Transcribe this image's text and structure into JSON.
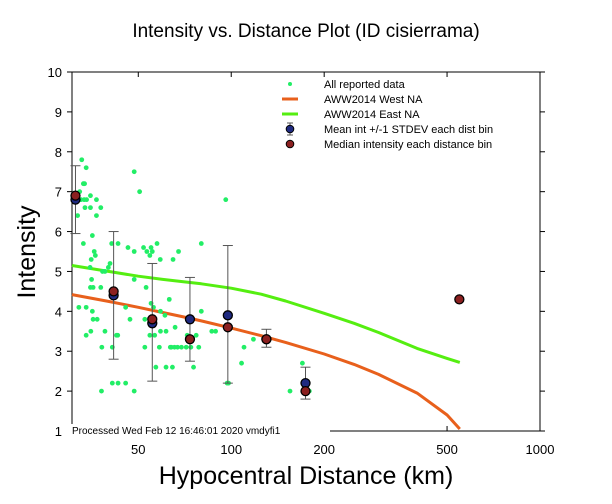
{
  "chart_data": {
    "type": "scatter",
    "title": "Intensity vs. Distance Plot (ID cisierrama)",
    "xlabel": "Hypocentral Distance (km)",
    "ylabel": "Intensity",
    "xscale": "log",
    "xlim": [
      30.5,
      1000
    ],
    "ylim": [
      1,
      10
    ],
    "xticks": [
      50,
      100,
      200,
      500,
      1000
    ],
    "xtick_labels": [
      "50",
      "100",
      "200",
      "500",
      "1000"
    ],
    "yticks": [
      1,
      2,
      3,
      4,
      5,
      6,
      7,
      8,
      9,
      10
    ],
    "ytick_labels": [
      "1",
      "2",
      "3",
      "4",
      "5",
      "6",
      "7",
      "8",
      "9",
      "10"
    ],
    "grid": false,
    "legend_position": "top-right",
    "footer": "Processed Wed Feb 12 16:46:01 2020 vmdyfi1",
    "colors": {
      "all_data": "#22ee66",
      "west": "#e8601c",
      "east": "#55ee11",
      "mean": "#1f2a80",
      "median": "#8b2020",
      "errorbar": "#555555"
    },
    "series": [
      {
        "name": "All reported data",
        "kind": "points",
        "points": [
          [
            32.8,
            7.8
          ],
          [
            33.9,
            7.6
          ],
          [
            33.2,
            7.2
          ],
          [
            33.5,
            7.2
          ],
          [
            32.3,
            7.0
          ],
          [
            32.6,
            6.8
          ],
          [
            33.4,
            6.8
          ],
          [
            34.0,
            6.8
          ],
          [
            35.0,
            6.9
          ],
          [
            36.6,
            6.8
          ],
          [
            33.6,
            6.6
          ],
          [
            35.0,
            6.6
          ],
          [
            37.8,
            6.6
          ],
          [
            31.8,
            6.4
          ],
          [
            36.6,
            6.4
          ],
          [
            33.2,
            5.7
          ],
          [
            35.5,
            5.9
          ],
          [
            36.0,
            5.5
          ],
          [
            36.3,
            5.4
          ],
          [
            35.2,
            5.3
          ],
          [
            34.9,
            5.1
          ],
          [
            41.0,
            5.7
          ],
          [
            43.0,
            5.7
          ],
          [
            40.5,
            5.2
          ],
          [
            40.0,
            5.1
          ],
          [
            35.3,
            4.8
          ],
          [
            38.3,
            5.0
          ],
          [
            39.0,
            5.0
          ],
          [
            35.0,
            4.6
          ],
          [
            35.7,
            4.6
          ],
          [
            37.8,
            4.6
          ],
          [
            32.1,
            4.1
          ],
          [
            33.9,
            4.1
          ],
          [
            35.5,
            4.0
          ],
          [
            35.7,
            3.8
          ],
          [
            33.9,
            3.4
          ],
          [
            35.1,
            3.5
          ],
          [
            36.8,
            3.8
          ],
          [
            38.1,
            3.1
          ],
          [
            41.2,
            3.1
          ],
          [
            42.9,
            3.4
          ],
          [
            39.0,
            3.5
          ],
          [
            42.5,
            3.4
          ],
          [
            46.3,
            5.6
          ],
          [
            48.5,
            5.5
          ],
          [
            52.0,
            5.6
          ],
          [
            53.3,
            5.5
          ],
          [
            55.5,
            5.5
          ],
          [
            55.0,
            5.6
          ],
          [
            57.5,
            5.7
          ],
          [
            48.5,
            7.5
          ],
          [
            50.5,
            7.0
          ],
          [
            54.5,
            5.4
          ],
          [
            58.9,
            5.3
          ],
          [
            64.8,
            5.3
          ],
          [
            67.5,
            5.5
          ],
          [
            48.5,
            4.8
          ],
          [
            53.0,
            4.6
          ],
          [
            55.0,
            4.2
          ],
          [
            56.0,
            4.1
          ],
          [
            59.0,
            4.0
          ],
          [
            61.0,
            3.9
          ],
          [
            63.0,
            4.3
          ],
          [
            65.8,
            3.6
          ],
          [
            45.5,
            4.1
          ],
          [
            47.0,
            3.8
          ],
          [
            52.5,
            3.8
          ],
          [
            54.5,
            3.4
          ],
          [
            56.5,
            3.4
          ],
          [
            59.0,
            3.5
          ],
          [
            61.5,
            3.5
          ],
          [
            64.0,
            3.1
          ],
          [
            52.5,
            3.1
          ],
          [
            58.5,
            3.1
          ],
          [
            63.5,
            3.1
          ],
          [
            65.5,
            3.1
          ],
          [
            67.0,
            3.1
          ],
          [
            69.0,
            3.1
          ],
          [
            71.5,
            3.1
          ],
          [
            74.0,
            3.1
          ],
          [
            78.5,
            3.1
          ],
          [
            57.0,
            2.6
          ],
          [
            61.5,
            2.6
          ],
          [
            64.5,
            2.6
          ],
          [
            72.0,
            3.4
          ],
          [
            75.5,
            2.6
          ],
          [
            80.0,
            4.0
          ],
          [
            86.5,
            3.5
          ],
          [
            96.0,
            6.8
          ],
          [
            98.0,
            2.2
          ],
          [
            80.0,
            5.7
          ],
          [
            77.0,
            3.4
          ],
          [
            89.0,
            3.5
          ],
          [
            118.0,
            3.3
          ],
          [
            110.0,
            3.1
          ],
          [
            108.0,
            2.7
          ],
          [
            38.0,
            2.0
          ],
          [
            41.2,
            2.2
          ],
          [
            43.0,
            2.2
          ],
          [
            45.5,
            2.2
          ],
          [
            48.5,
            2.0
          ],
          [
            170.0,
            2.7
          ],
          [
            155.0,
            2.0
          ],
          [
            179.0,
            2.0
          ],
          [
            97.0,
            2.2
          ]
        ]
      },
      {
        "name": "AWW2014 West NA",
        "kind": "line",
        "x": [
          30.5,
          40,
          50,
          60,
          70,
          80,
          100,
          125,
          150,
          200,
          250,
          300,
          400,
          500,
          550
        ],
        "y": [
          4.42,
          4.25,
          4.1,
          3.97,
          3.86,
          3.76,
          3.58,
          3.39,
          3.22,
          2.93,
          2.67,
          2.42,
          1.95,
          1.4,
          1.05
        ]
      },
      {
        "name": "AWW2014 East NA",
        "kind": "line",
        "x": [
          30.5,
          40,
          50,
          60,
          70,
          80,
          100,
          125,
          150,
          200,
          250,
          300,
          400,
          500,
          550
        ],
        "y": [
          5.15,
          5.0,
          4.88,
          4.8,
          4.74,
          4.69,
          4.58,
          4.43,
          4.26,
          3.95,
          3.7,
          3.47,
          3.07,
          2.82,
          2.72
        ]
      },
      {
        "name": "Mean int +/-1 STDEV each dist bin",
        "kind": "errorbar",
        "points": [
          {
            "x": 31.3,
            "y": 6.8,
            "lo": 5.95,
            "hi": 7.65
          },
          {
            "x": 41.6,
            "y": 4.4,
            "lo": 2.8,
            "hi": 6.0
          },
          {
            "x": 55.5,
            "y": 3.7,
            "lo": 2.25,
            "hi": 5.2
          },
          {
            "x": 73.5,
            "y": 3.8,
            "lo": 2.75,
            "hi": 4.85
          },
          {
            "x": 97.5,
            "y": 3.9,
            "lo": 2.2,
            "hi": 5.65
          },
          {
            "x": 130.0,
            "y": 3.3,
            "lo": 3.1,
            "hi": 3.55
          },
          {
            "x": 174.0,
            "y": 2.2,
            "lo": 1.8,
            "hi": 2.6
          }
        ]
      },
      {
        "name": "Median intensity each distance bin",
        "kind": "points",
        "points": [
          [
            31.3,
            6.9
          ],
          [
            41.6,
            4.5
          ],
          [
            55.5,
            3.8
          ],
          [
            73.5,
            3.3
          ],
          [
            97.5,
            3.6
          ],
          [
            130.0,
            3.3
          ],
          [
            174.0,
            2.0
          ],
          [
            548.0,
            4.3
          ]
        ]
      }
    ]
  }
}
